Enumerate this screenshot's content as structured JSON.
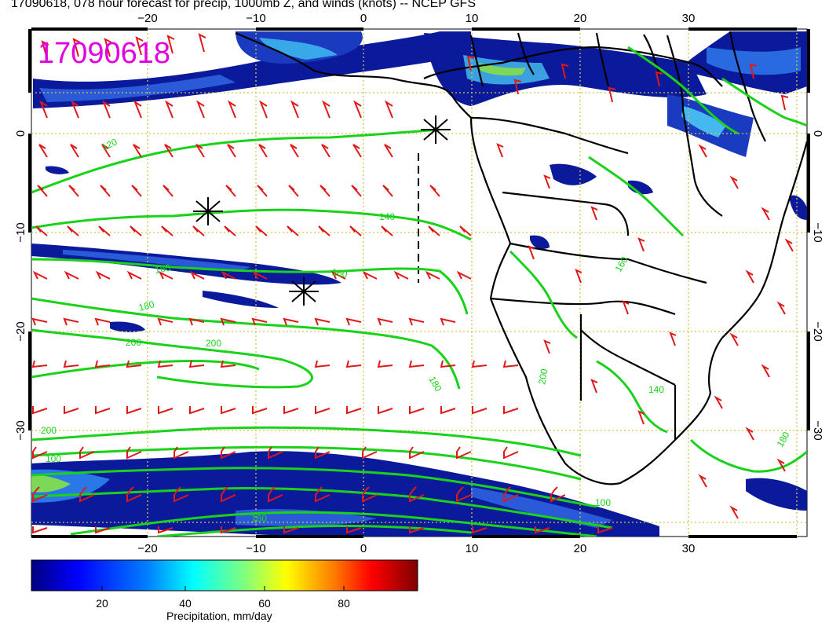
{
  "title": "17090618, 078 hour forecast for precip, 1000mb Z, and winds (knots) -- NCEP GFS",
  "timestamp_stamp": "17090618",
  "x_ticks": [
    "−20",
    "−10",
    "0",
    "10",
    "20",
    "30"
  ],
  "y_ticks": [
    "0",
    "−10",
    "−20",
    "−30"
  ],
  "contour_labels": [
    "120",
    "140",
    "160",
    "160",
    "160",
    "180",
    "180",
    "200",
    "200",
    "200",
    "100",
    "160",
    "140",
    "180",
    "200",
    "100"
  ],
  "colorbar": {
    "label": "Precipitation, mm/day",
    "ticks": [
      "20",
      "40",
      "60",
      "80"
    ]
  },
  "colors": {
    "precip_scale": [
      "#00007f",
      "#0000ff",
      "#007fff",
      "#00ffff",
      "#7fff7f",
      "#ffff00",
      "#ff7f00",
      "#ff0000",
      "#7f0000"
    ],
    "contours": "#19d219",
    "wind_barbs": "#e01818",
    "grid": "#d4c34a",
    "stamp": "#e000e0"
  }
}
